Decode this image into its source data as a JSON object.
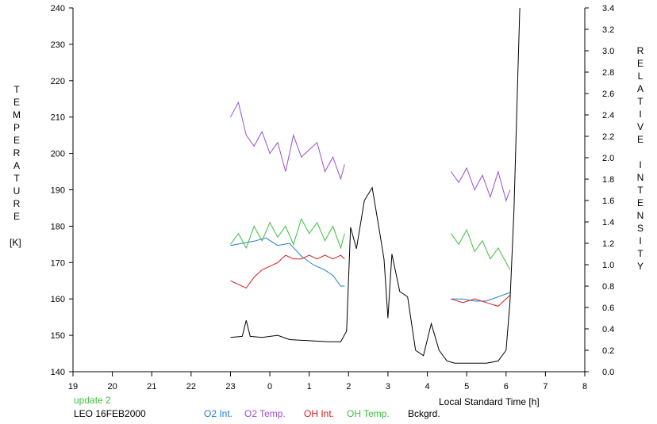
{
  "chart_data": {
    "type": "line",
    "ylabel_left_letters": [
      "T",
      "E",
      "M",
      "P",
      "E",
      "R",
      "A",
      "T",
      "U",
      "R",
      "E"
    ],
    "ylabel_left_unit": "[K]",
    "ylabel_right_letters": [
      "R",
      "E",
      "L",
      "A",
      "T",
      "I",
      "V",
      "E",
      "",
      "I",
      "N",
      "T",
      "E",
      "N",
      "S",
      "I",
      "T",
      "Y"
    ],
    "xlabel": "Local Standard Time [h]",
    "xlim": [
      19,
      8
    ],
    "x_ticks": [
      "19",
      "20",
      "21",
      "22",
      "23",
      "0",
      "1",
      "2",
      "3",
      "4",
      "5",
      "6",
      "7",
      "8"
    ],
    "ylim_left": [
      140,
      240
    ],
    "y_ticks_left": [
      "140",
      "150",
      "160",
      "170",
      "180",
      "190",
      "200",
      "210",
      "220",
      "230",
      "240"
    ],
    "ylim_right": [
      0.0,
      3.4
    ],
    "y_ticks_right": [
      "0.0",
      "0.2",
      "0.4",
      "0.6",
      "0.8",
      "1.0",
      "1.2",
      "1.4",
      "1.6",
      "1.8",
      "2.0",
      "2.2",
      "2.4",
      "2.6",
      "2.8",
      "3.0",
      "3.2",
      "3.4"
    ],
    "grid": false,
    "series": [
      {
        "name": "O2 Int.",
        "color": "#1f7fd0",
        "axis": "right",
        "segments": [
          {
            "x": [
              23.0,
              23.3,
              23.6,
              23.9,
              24.2,
              24.5,
              24.8,
              25.1,
              25.4,
              25.6,
              25.8,
              25.9
            ],
            "y": [
              1.18,
              1.2,
              1.22,
              1.25,
              1.18,
              1.2,
              1.08,
              1.0,
              0.95,
              0.9,
              0.8,
              0.8
            ]
          },
          {
            "x": [
              28.6,
              28.9,
              29.2,
              29.5,
              29.8,
              30.1
            ],
            "y": [
              0.68,
              0.68,
              0.66,
              0.66,
              0.7,
              0.74
            ]
          }
        ]
      },
      {
        "name": "O2 Temp.",
        "color": "#9b4fd1",
        "axis": "left",
        "segments": [
          {
            "x": [
              23.0,
              23.2,
              23.4,
              23.6,
              23.8,
              24.0,
              24.2,
              24.4,
              24.6,
              24.8,
              25.0,
              25.2,
              25.4,
              25.6,
              25.8,
              25.9
            ],
            "y": [
              210,
              214,
              205,
              202,
              206,
              200,
              203,
              195,
              205,
              199,
              201,
              203,
              195,
              199,
              193,
              197
            ]
          },
          {
            "x": [
              28.6,
              28.8,
              29.0,
              29.2,
              29.4,
              29.6,
              29.8,
              30.0,
              30.1
            ],
            "y": [
              195,
              192,
              196,
              190,
              194,
              188,
              195,
              187,
              190
            ]
          }
        ]
      },
      {
        "name": "OH Int.",
        "color": "#d81b1b",
        "axis": "left",
        "segments": [
          {
            "x": [
              23.0,
              23.2,
              23.4,
              23.6,
              23.8,
              24.0,
              24.2,
              24.4,
              24.6,
              24.8,
              25.0,
              25.2,
              25.4,
              25.6,
              25.8,
              25.9
            ],
            "y": [
              165,
              164,
              163,
              166,
              168,
              169,
              170,
              172,
              171,
              171,
              172,
              171,
              172,
              171,
              172,
              171
            ]
          },
          {
            "x": [
              28.6,
              28.9,
              29.2,
              29.5,
              29.8,
              30.1
            ],
            "y": [
              160,
              159,
              160,
              159,
              158,
              161
            ]
          }
        ]
      },
      {
        "name": "OH Temp.",
        "color": "#3fc03f",
        "axis": "left",
        "segments": [
          {
            "x": [
              23.0,
              23.2,
              23.4,
              23.6,
              23.8,
              24.0,
              24.2,
              24.4,
              24.6,
              24.8,
              25.0,
              25.2,
              25.4,
              25.6,
              25.8,
              25.9
            ],
            "y": [
              175,
              178,
              174,
              180,
              176,
              181,
              177,
              180,
              175,
              182,
              178,
              181,
              176,
              180,
              174,
              178
            ]
          },
          {
            "x": [
              28.6,
              28.8,
              29.0,
              29.2,
              29.4,
              29.6,
              29.8,
              30.0,
              30.1
            ],
            "y": [
              178,
              175,
              179,
              173,
              176,
              171,
              174,
              170,
              168
            ]
          }
        ]
      },
      {
        "name": "Bckgrd.",
        "color": "#000000",
        "axis": "right",
        "segments": [
          {
            "x": [
              23.0,
              23.3,
              23.4,
              23.5,
              23.8,
              24.2,
              24.5,
              25.0,
              25.5,
              25.8,
              25.95,
              26.05,
              26.2,
              26.4,
              26.6,
              26.8,
              26.9,
              27.0,
              27.1,
              27.3,
              27.5,
              27.7,
              27.9,
              28.1,
              28.3,
              28.5,
              28.7,
              28.9,
              29.2,
              29.5,
              29.8,
              30.0,
              30.1,
              30.2,
              30.3,
              30.35
            ],
            "y": [
              0.32,
              0.33,
              0.48,
              0.33,
              0.32,
              0.34,
              0.3,
              0.29,
              0.28,
              0.28,
              0.38,
              1.35,
              1.15,
              1.6,
              1.72,
              1.28,
              1.05,
              0.5,
              1.1,
              0.75,
              0.7,
              0.2,
              0.15,
              0.45,
              0.2,
              0.1,
              0.08,
              0.08,
              0.08,
              0.08,
              0.1,
              0.2,
              0.65,
              1.5,
              2.8,
              3.4
            ]
          }
        ]
      }
    ]
  },
  "footer": {
    "update": "update 2",
    "station_date": "LEO 16FEB2000",
    "legend": [
      {
        "label": "O2 Int.",
        "color": "#1f7fd0"
      },
      {
        "label": "O2 Temp.",
        "color": "#9b4fd1"
      },
      {
        "label": "OH Int.",
        "color": "#d81b1b"
      },
      {
        "label": "OH Temp.",
        "color": "#3fc03f"
      },
      {
        "label": "Bckgrd.",
        "color": "#000000"
      }
    ]
  }
}
